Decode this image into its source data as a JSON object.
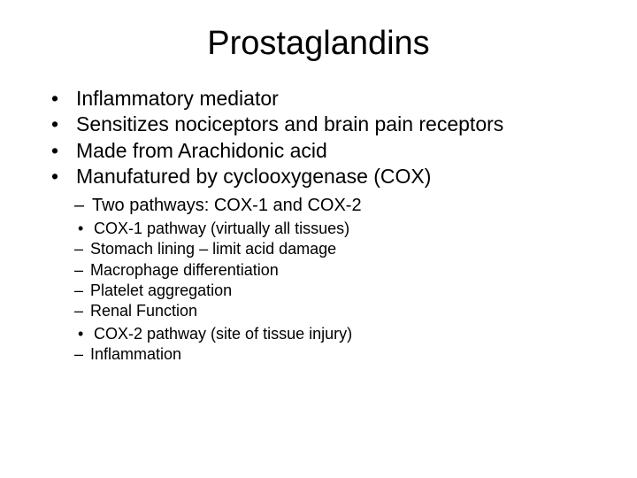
{
  "slide": {
    "title": "Prostaglandins",
    "bullets": [
      "Inflammatory mediator",
      "Sensitizes nociceptors and brain pain receptors",
      "Made from Arachidonic acid",
      "Manufatured by cyclooxygenase (COX)"
    ],
    "sub1": "Two pathways: COX-1 and COX-2",
    "cox1_heading": "COX-1 pathway (virtually all tissues)",
    "cox1_items": [
      "Stomach lining – limit acid damage",
      "Macrophage differentiation",
      "Platelet aggregation",
      "Renal Function"
    ],
    "cox2_heading": "COX-2 pathway (site of tissue injury)",
    "cox2_items": [
      "Inflammation"
    ]
  },
  "style": {
    "background_color": "#ffffff",
    "text_color": "#000000",
    "font_family": "Arial",
    "title_fontsize": 38,
    "level1_fontsize": 23,
    "level2_fontsize": 20,
    "level3_fontsize": 18,
    "level4_fontsize": 18
  }
}
